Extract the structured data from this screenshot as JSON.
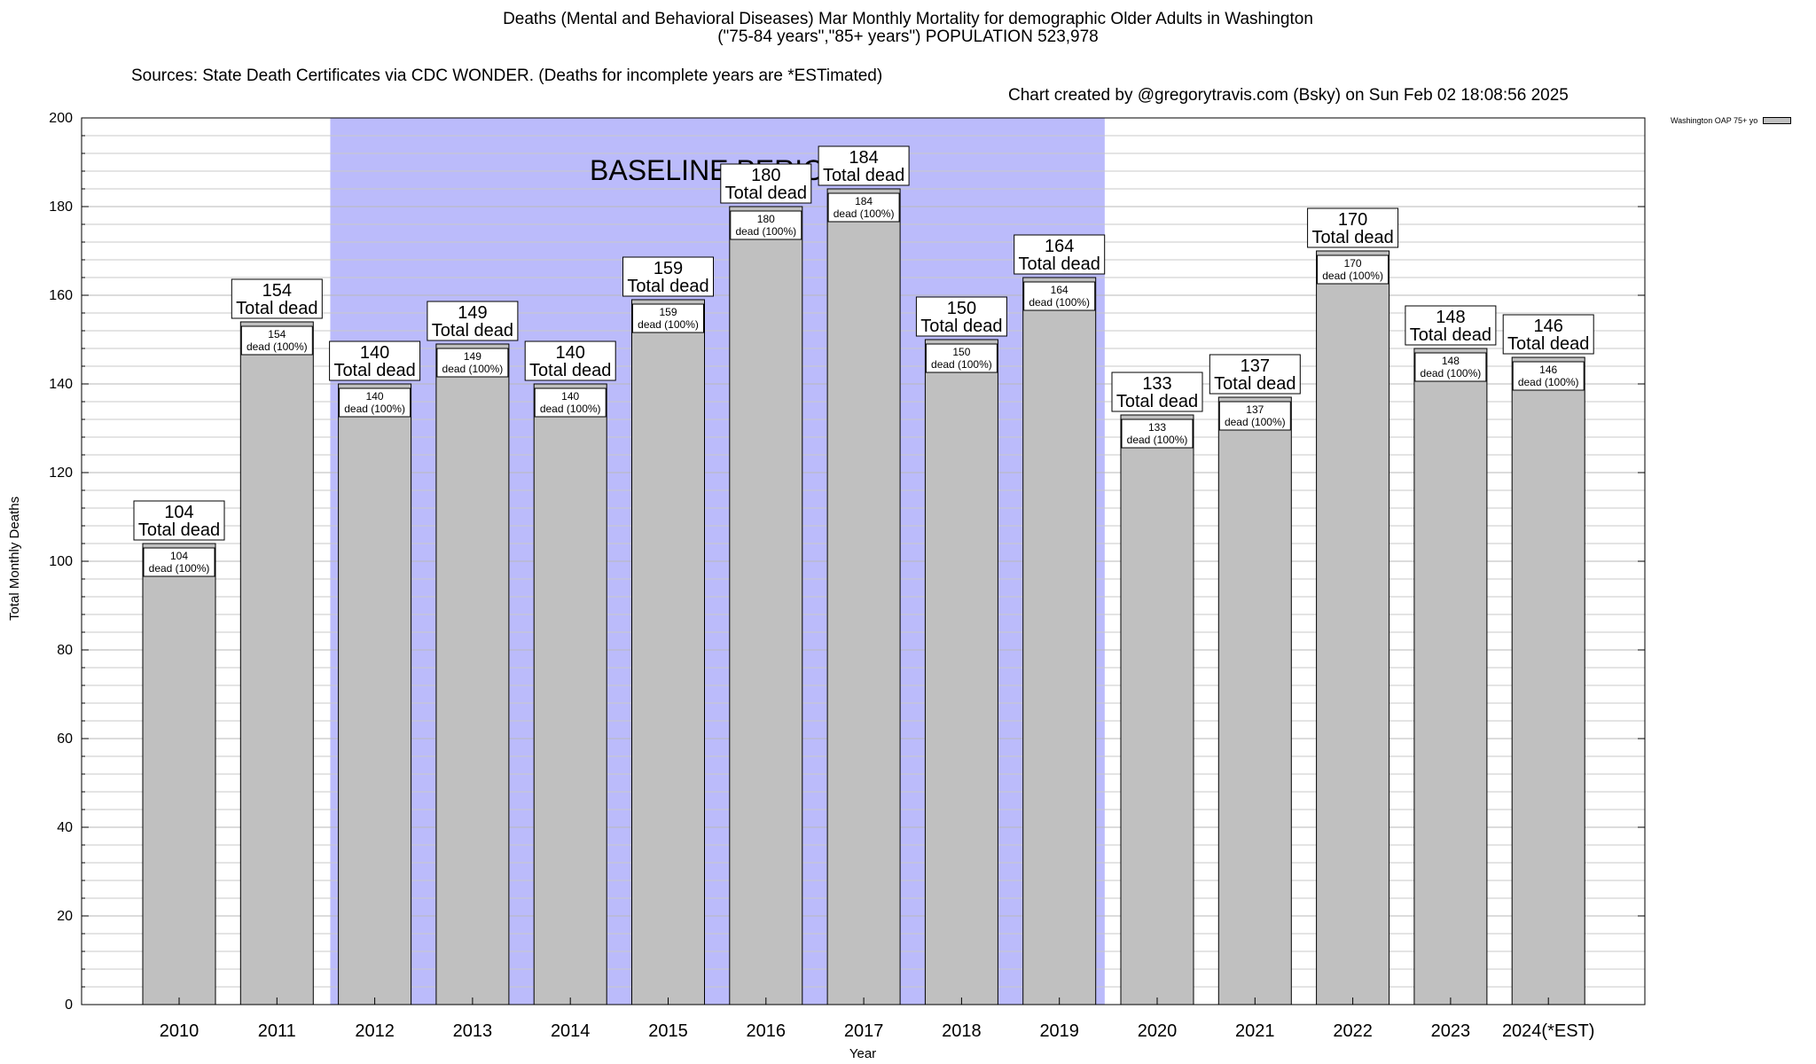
{
  "title": {
    "line1": "Deaths (Mental and Behavioral Diseases) Mar Monthly Mortality for demographic Older Adults in Washington",
    "line2": "(\"75-84 years\",\"85+ years\") POPULATION 523,978",
    "sources": "Sources: State Death Certificates via CDC WONDER. (Deaths for incomplete years are *ESTimated)",
    "credit": "Chart created by @gregorytravis.com (Bsky) on Sun Feb 02 18:08:56 2025"
  },
  "chart_data": {
    "type": "bar",
    "xlabel": "Year",
    "ylabel": "Total Monthly Deaths",
    "ylim": [
      0,
      200
    ],
    "yticks": [
      0,
      20,
      40,
      60,
      80,
      100,
      120,
      140,
      160,
      180,
      200
    ],
    "grid": true,
    "legend": {
      "position": "top-right",
      "label": "Washington OAP 75+ yo"
    },
    "categories": [
      "2010",
      "2011",
      "2012",
      "2013",
      "2014",
      "2015",
      "2016",
      "2017",
      "2018",
      "2019",
      "2020",
      "2021",
      "2022",
      "2023",
      "2024(*EST)"
    ],
    "series": [
      {
        "name": "Washington OAP 75+ yo",
        "values": [
          104,
          154,
          140,
          149,
          140,
          159,
          180,
          184,
          150,
          164,
          133,
          137,
          170,
          148,
          146
        ]
      }
    ],
    "total_label": "Total dead",
    "inner_label": "dead (100%)",
    "baseline": {
      "label": "BASELINE PERIOD",
      "from": "2012",
      "to": "2019"
    },
    "colors": {
      "bar": "#c0c0c0",
      "baseline_band": "#bbbbfb"
    }
  }
}
